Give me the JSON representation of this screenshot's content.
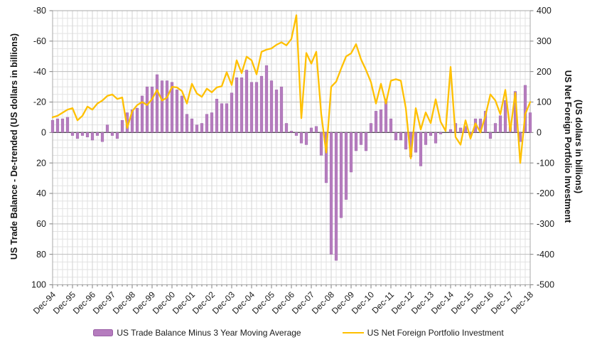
{
  "chart_data": {
    "type": "combo-bar-line",
    "x_frequency": "quarterly",
    "x_start": "Dec-94",
    "x_end": "Dec-18",
    "quarters_per_tick": 4,
    "x_tick_labels": [
      "Dec-94",
      "Dec-95",
      "Dec-96",
      "Dec-97",
      "Dec-98",
      "Dec-99",
      "Dec-00",
      "Dec-01",
      "Dec-02",
      "Dec-03",
      "Dec-04",
      "Dec-05",
      "Dec-06",
      "Dec-07",
      "Dec-08",
      "Dec-09",
      "Dec-10",
      "Dec-11",
      "Dec-12",
      "Dec-13",
      "Dec-14",
      "Dec-15",
      "Dec-16",
      "Dec-17",
      "Dec-18"
    ],
    "series": [
      {
        "name": "US Trade Balance Minus 3 Year Moving Average",
        "type": "bar",
        "axis": "left",
        "color": "#B57CBE",
        "border_color": "#9A5FA6",
        "values": [
          -8,
          -9,
          -9,
          -10,
          2,
          4,
          2,
          3,
          5,
          2,
          6,
          -5,
          2,
          4,
          -8,
          -13,
          -15,
          -16,
          -24,
          -30,
          -30,
          -38,
          -34,
          -34,
          -33,
          -28,
          -24,
          -12,
          -9,
          -5,
          -6,
          -12,
          -13,
          -22,
          -19,
          -19,
          -26,
          -36,
          -36,
          -41,
          -33,
          -33,
          -37,
          -44,
          -34,
          -28,
          -30,
          -6,
          -1,
          2,
          7,
          8,
          -3,
          -4,
          15,
          33,
          80,
          84,
          56,
          44,
          26,
          12,
          8,
          12,
          -6,
          -14,
          -15,
          -22,
          -9,
          5,
          5,
          11,
          16,
          13,
          22,
          8,
          2,
          7,
          1,
          0,
          -2,
          -6,
          -3,
          -4,
          2,
          -9,
          -9,
          -14,
          4,
          -6,
          -11,
          -21,
          -4,
          -27,
          6,
          -31,
          -13
        ]
      },
      {
        "name": "US Net Foreign Portfolio Investment",
        "type": "line",
        "axis": "right",
        "color": "#FFC000",
        "values": [
          50,
          55,
          65,
          75,
          80,
          40,
          55,
          85,
          75,
          95,
          105,
          120,
          125,
          110,
          115,
          15,
          70,
          90,
          100,
          90,
          110,
          140,
          105,
          115,
          150,
          148,
          136,
          95,
          160,
          128,
          117,
          144,
          132,
          148,
          152,
          198,
          156,
          237,
          195,
          249,
          237,
          191,
          265,
          272,
          276,
          288,
          296,
          286,
          307,
          385,
          47,
          261,
          226,
          265,
          60,
          -66,
          150,
          167,
          210,
          250,
          260,
          290,
          240,
          205,
          165,
          95,
          160,
          95,
          170,
          175,
          170,
          80,
          -85,
          80,
          10,
          66,
          31,
          109,
          35,
          5,
          215,
          -15,
          -40,
          40,
          -20,
          30,
          0,
          55,
          125,
          105,
          60,
          140,
          5,
          130,
          -100,
          60,
          100
        ]
      }
    ],
    "left_axis": {
      "title": "US Trade Balance - De-trended (US dollars in billions)",
      "inverted": true,
      "top_value": -80,
      "bottom_value": 100,
      "tick_step": 20,
      "tick_labels": [
        "-80",
        "-60",
        "-40",
        "-20",
        "0",
        "20",
        "40",
        "60",
        "80",
        "100"
      ]
    },
    "right_axis": {
      "title": "US Net Foreign Portfolio Investment",
      "title_line2": "(US dollars in billions)",
      "top_value": 400,
      "bottom_value": -500,
      "tick_step": 100,
      "tick_labels": [
        "400",
        "300",
        "200",
        "100",
        "0",
        "-100",
        "-200",
        "-300",
        "-400",
        "-500"
      ]
    },
    "grid": {
      "horizontal_minor_step_left_units": 5,
      "vertical_minor": "quarterly",
      "visible": true
    },
    "legend_position": "bottom"
  },
  "legend": {
    "items": [
      {
        "label": "US Trade Balance Minus 3 Year Moving Average",
        "swatch": "bar"
      },
      {
        "label": "US Net Foreign Portfolio Investment",
        "swatch": "line"
      }
    ]
  },
  "colors": {
    "bar_fill": "#B57CBE",
    "bar_border": "#9A5FA6",
    "line": "#FFC000",
    "grid_minor": "#E2E2E2",
    "grid_major": "#BDBDBD",
    "plot_border": "#A9A9A9",
    "zero_line": "#4D4D4D",
    "tick_color": "#7F7F7F",
    "text": "#1A1A1A"
  }
}
